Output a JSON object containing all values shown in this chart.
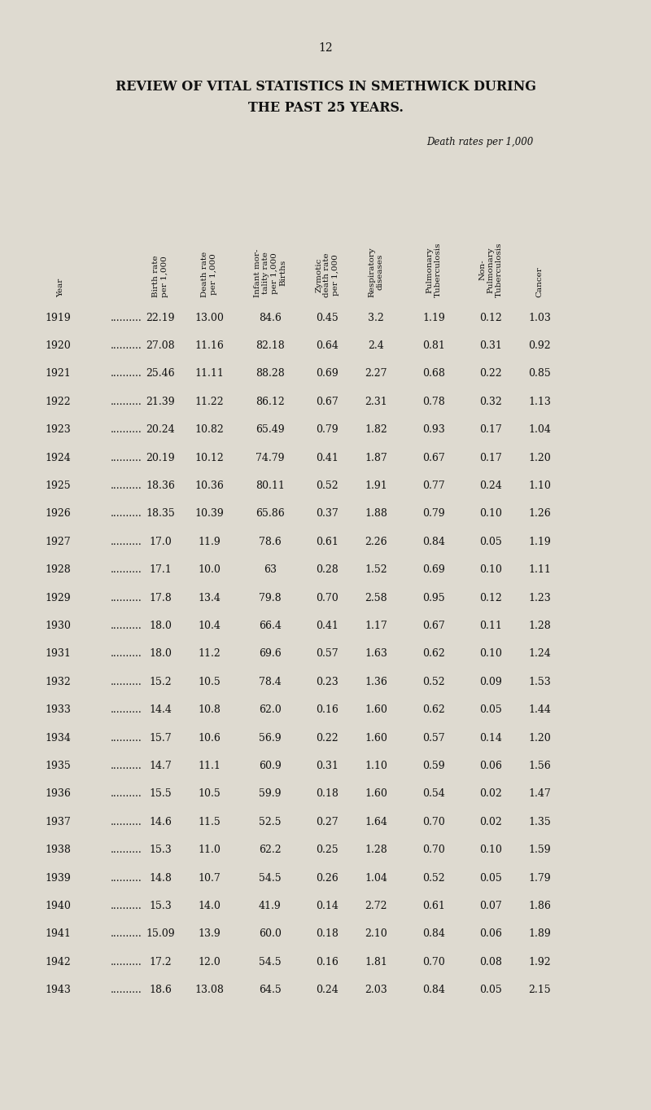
{
  "page_number": "12",
  "title_line1": "REVIEW OF VITAL STATISTICS IN SMETHWICK DURING",
  "title_line2": "THE PAST 25 YEARS.",
  "death_rates_label": "Death rates per 1,000",
  "col_headers": [
    "Year",
    "Birth rate\nper 1,000",
    "Death rate\nper 1,000",
    "Infant mor-\ntality rate\nper 1,000\nBirths",
    "Zymotic\ndeath rate\nper 1,000",
    "Respiratory\ndiseases",
    "Pulmonary\nTuberculosis",
    "Non-\nPulmonary\nTuberculosis",
    "Cancer"
  ],
  "rows": [
    [
      "1919",
      "22.19",
      "13.00",
      "84.6",
      "0.45",
      "3.2",
      "1.19",
      "0.12",
      "1.03"
    ],
    [
      "1920",
      "27.08",
      "11.16",
      "82.18",
      "0.64",
      "2.4",
      "0.81",
      "0.31",
      "0.92"
    ],
    [
      "1921",
      "25.46",
      "11.11",
      "88.28",
      "0.69",
      "2.27",
      "0.68",
      "0.22",
      "0.85"
    ],
    [
      "1922",
      "21.39",
      "11.22",
      "86.12",
      "0.67",
      "2.31",
      "0.78",
      "0.32",
      "1.13"
    ],
    [
      "1923",
      "20.24",
      "10.82",
      "65.49",
      "0.79",
      "1.82",
      "0.93",
      "0.17",
      "1.04"
    ],
    [
      "1924",
      "20.19",
      "10.12",
      "74.79",
      "0.41",
      "1.87",
      "0.67",
      "0.17",
      "1.20"
    ],
    [
      "1925",
      "18.36",
      "10.36",
      "80.11",
      "0.52",
      "1.91",
      "0.77",
      "0.24",
      "1.10"
    ],
    [
      "1926",
      "18.35",
      "10.39",
      "65.86",
      "0.37",
      "1.88",
      "0.79",
      "0.10",
      "1.26"
    ],
    [
      "1927",
      "17.0",
      "11.9",
      "78.6",
      "0.61",
      "2.26",
      "0.84",
      "0.05",
      "1.19"
    ],
    [
      "1928",
      "17.1",
      "10.0",
      "63",
      "0.28",
      "1.52",
      "0.69",
      "0.10",
      "1.11"
    ],
    [
      "1929",
      "17.8",
      "13.4",
      "79.8",
      "0.70",
      "2.58",
      "0.95",
      "0.12",
      "1.23"
    ],
    [
      "1930",
      "18.0",
      "10.4",
      "66.4",
      "0.41",
      "1.17",
      "0.67",
      "0.11",
      "1.28"
    ],
    [
      "1931",
      "18.0",
      "11.2",
      "69.6",
      "0.57",
      "1.63",
      "0.62",
      "0.10",
      "1.24"
    ],
    [
      "1932",
      "15.2",
      "10.5",
      "78.4",
      "0.23",
      "1.36",
      "0.52",
      "0.09",
      "1.53"
    ],
    [
      "1933",
      "14.4",
      "10.8",
      "62.0",
      "0.16",
      "1.60",
      "0.62",
      "0.05",
      "1.44"
    ],
    [
      "1934",
      "15.7",
      "10.6",
      "56.9",
      "0.22",
      "1.60",
      "0.57",
      "0.14",
      "1.20"
    ],
    [
      "1935",
      "14.7",
      "11.1",
      "60.9",
      "0.31",
      "1.10",
      "0.59",
      "0.06",
      "1.56"
    ],
    [
      "1936",
      "15.5",
      "10.5",
      "59.9",
      "0.18",
      "1.60",
      "0.54",
      "0.02",
      "1.47"
    ],
    [
      "1937",
      "14.6",
      "11.5",
      "52.5",
      "0.27",
      "1.64",
      "0.70",
      "0.02",
      "1.35"
    ],
    [
      "1938",
      "15.3",
      "11.0",
      "62.2",
      "0.25",
      "1.28",
      "0.70",
      "0.10",
      "1.59"
    ],
    [
      "1939",
      "14.8",
      "10.7",
      "54.5",
      "0.26",
      "1.04",
      "0.52",
      "0.05",
      "1.79"
    ],
    [
      "1940",
      "15.3",
      "14.0",
      "41.9",
      "0.14",
      "2.72",
      "0.61",
      "0.07",
      "1.86"
    ],
    [
      "1941",
      "15.09",
      "13.9",
      "60.0",
      "0.18",
      "2.10",
      "0.84",
      "0.06",
      "1.89"
    ],
    [
      "1942",
      "17.2",
      "12.0",
      "54.5",
      "0.16",
      "1.81",
      "0.70",
      "0.08",
      "1.92"
    ],
    [
      "1943",
      "18.6",
      "13.08",
      "64.5",
      "0.24",
      "2.03",
      "0.84",
      "0.05",
      "2.15"
    ]
  ],
  "background_color": "#dedad0",
  "text_color": "#111111",
  "title_fontsize": 11.5,
  "header_fontsize": 7.5,
  "data_fontsize": 9,
  "page_num_fontsize": 10,
  "death_rates_fontsize": 8.5
}
